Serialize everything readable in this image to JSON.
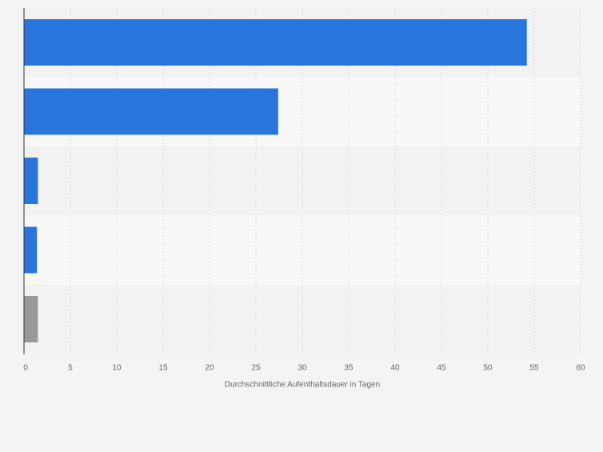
{
  "chart_data": {
    "type": "bar",
    "orientation": "horizontal",
    "categories": [
      "",
      "",
      "",
      "",
      ""
    ],
    "values": [
      54.2,
      27.4,
      1.5,
      1.4,
      1.5
    ],
    "bar_colors": [
      "#2876dd",
      "#2876dd",
      "#2876dd",
      "#2876dd",
      "#999999"
    ],
    "xlabel": "Durchschnittliche Aufenthaltsdauer in Tagen",
    "ylabel": "",
    "xlim": [
      0,
      60
    ],
    "x_ticks": [
      0,
      5,
      10,
      15,
      20,
      25,
      30,
      35,
      40,
      45,
      50,
      55,
      60
    ],
    "grid": true,
    "band_colors": [
      "#f2f2f3",
      "#f8f8f9"
    ]
  }
}
